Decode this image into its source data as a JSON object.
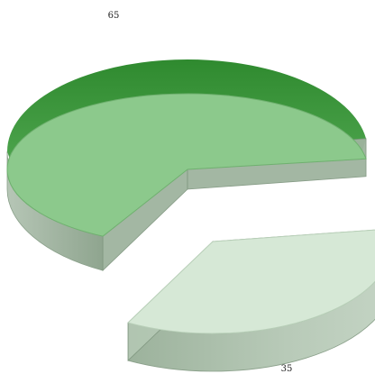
{
  "chart_data": {
    "type": "pie",
    "style": "3d-exploded",
    "title": "",
    "categories": [
      "",
      ""
    ],
    "values": [
      65,
      35
    ],
    "data_labels": [
      "65",
      "35"
    ],
    "colors": {
      "slice_65": {
        "top": "#8cc98c",
        "top_edge": "#6fb06f",
        "inner_wall": "#3f9a3f",
        "side": "#9fb49f"
      },
      "slice_35": {
        "top": "#d6e8d6",
        "top_edge": "#b9d0b9",
        "side": "#b3c7b3"
      }
    },
    "legend": "none",
    "grid": false
  }
}
